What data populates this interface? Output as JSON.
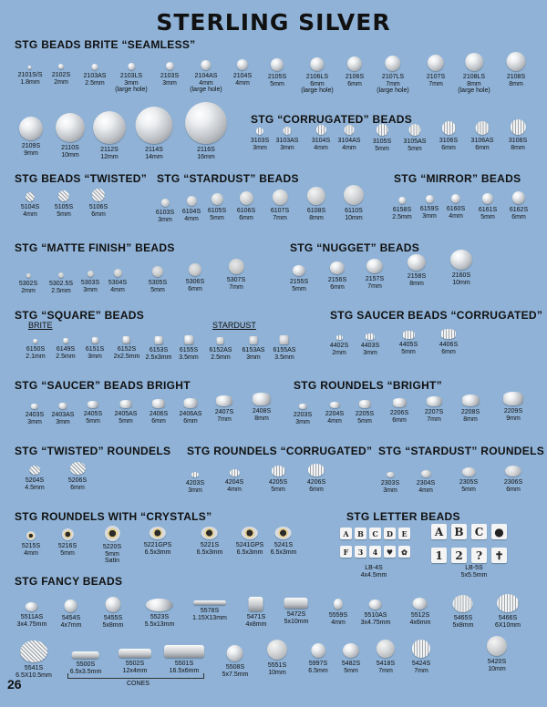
{
  "title": "STERLING SILVER",
  "page_number": "26",
  "sections": [
    {
      "id": "seamless",
      "label": "STG BEADS BRITE “SEAMLESS”"
    },
    {
      "id": "corrugated",
      "label": "STG “CORRUGATED” BEADS"
    },
    {
      "id": "twisted",
      "label": "STG BEADS “TWISTED”"
    },
    {
      "id": "stardust",
      "label": "STG “STARDUST” BEADS"
    },
    {
      "id": "mirror",
      "label": "STG “MIRROR” BEADS"
    },
    {
      "id": "matte",
      "label": "STG “MATTE FINISH” BEADS"
    },
    {
      "id": "nugget",
      "label": "STG “NUGGET” BEADS"
    },
    {
      "id": "square",
      "label": "STG “SQUARE” BEADS"
    },
    {
      "id": "saucer_corr",
      "label": "STG SAUCER BEADS “CORRUGATED”"
    },
    {
      "id": "saucer_bright",
      "label": "STG “SAUCER” BEADS BRIGHT"
    },
    {
      "id": "roundels_bright",
      "label": "STG ROUNDELS “BRIGHT”"
    },
    {
      "id": "twisted_roundels",
      "label": "STG “TWISTED” ROUNDELS"
    },
    {
      "id": "roundels_corr",
      "label": "STG ROUNDELS “CORRUGATED”"
    },
    {
      "id": "stardust_roundels",
      "label": "STG “STARDUST” ROUNDELS"
    },
    {
      "id": "crystals",
      "label": "STG ROUNDELS WITH “CRYSTALS”"
    },
    {
      "id": "letter",
      "label": "STG LETTER BEADS"
    },
    {
      "id": "fancy",
      "label": "STG FANCY BEADS"
    }
  ],
  "sublabels": {
    "brite": "BRITE",
    "stardust": "STARDUST",
    "cones": "CONES"
  },
  "items": [
    [
      "2101S/S",
      "1.8mm"
    ],
    [
      "2102S",
      "2mm"
    ],
    [
      "2103AS",
      "2.5mm"
    ],
    [
      "2103LS",
      "3mm\n(large hole)"
    ],
    [
      "2103S",
      "3mm"
    ],
    [
      "2104AS",
      "4mm\n(large hole)"
    ],
    [
      "2104S",
      "4mm"
    ],
    [
      "2105S",
      "5mm"
    ],
    [
      "2106LS",
      "6mm\n(large hole)"
    ],
    [
      "2106S",
      "6mm"
    ],
    [
      "2107LS",
      "7mm\n(large hole)"
    ],
    [
      "2107S",
      "7mm"
    ],
    [
      "2108LS",
      "8mm\n(large hole)"
    ],
    [
      "2108S",
      "8mm"
    ],
    [
      "2109S",
      "9mm"
    ],
    [
      "2110S",
      "10mm"
    ],
    [
      "2112S",
      "12mm"
    ],
    [
      "2114S",
      "14mm"
    ],
    [
      "2116S",
      "16mm"
    ],
    [
      "3103S",
      "3mm"
    ],
    [
      "3103AS",
      "3mm"
    ],
    [
      "3104S",
      "4mm"
    ],
    [
      "3104AS",
      "4mm"
    ],
    [
      "3105S",
      "5mm"
    ],
    [
      "3105AS",
      "5mm"
    ],
    [
      "3106S",
      "6mm"
    ],
    [
      "3106AS",
      "6mm"
    ],
    [
      "3108S",
      "8mm"
    ],
    [
      "5104S",
      "4mm"
    ],
    [
      "5105S",
      "5mm"
    ],
    [
      "5106S",
      "6mm"
    ],
    [
      "6103S",
      "3mm"
    ],
    [
      "6104S",
      "4mm"
    ],
    [
      "6105S",
      "5mm"
    ],
    [
      "6106S",
      "6mm"
    ],
    [
      "6107S",
      "7mm"
    ],
    [
      "6108S",
      "8mm"
    ],
    [
      "6110S",
      "10mm"
    ],
    [
      "6158S",
      "2.5mm"
    ],
    [
      "6159S",
      "3mm"
    ],
    [
      "6160S",
      "4mm"
    ],
    [
      "6161S",
      "5mm"
    ],
    [
      "6162S",
      "6mm"
    ],
    [
      "5302S",
      "2mm"
    ],
    [
      "5302.5S",
      "2.5mm"
    ],
    [
      "5303S",
      "3mm"
    ],
    [
      "5304S",
      "4mm"
    ],
    [
      "5305S",
      "5mm"
    ],
    [
      "5306S",
      "6mm"
    ],
    [
      "5307S",
      "7mm"
    ],
    [
      "2155S",
      "5mm"
    ],
    [
      "2156S",
      "6mm"
    ],
    [
      "2157S",
      "7mm"
    ],
    [
      "2158S",
      "8mm"
    ],
    [
      "2160S",
      "10mm"
    ],
    [
      "6150S",
      "2.1mm"
    ],
    [
      "6149S",
      "2.5mm"
    ],
    [
      "6151S",
      "3mm"
    ],
    [
      "6152S",
      "2x2.5mm"
    ],
    [
      "6153S",
      "2.5x3mm"
    ],
    [
      "6155S",
      "3.5mm"
    ],
    [
      "6152AS",
      "2.5mm"
    ],
    [
      "6153AS",
      "3mm"
    ],
    [
      "6155AS",
      "3.5mm"
    ],
    [
      "4402S",
      "2mm"
    ],
    [
      "4403S",
      "3mm"
    ],
    [
      "4405S",
      "5mm"
    ],
    [
      "4406S",
      "6mm"
    ],
    [
      "2403S",
      "3mm"
    ],
    [
      "2403AS",
      "3mm"
    ],
    [
      "2405S",
      "5mm"
    ],
    [
      "2405AS",
      "5mm"
    ],
    [
      "2406S",
      "6mm"
    ],
    [
      "2406AS",
      "6mm"
    ],
    [
      "2407S",
      "7mm"
    ],
    [
      "2408S",
      "8mm"
    ],
    [
      "2203S",
      "3mm"
    ],
    [
      "2204S",
      "4mm"
    ],
    [
      "2205S",
      "5mm"
    ],
    [
      "2206S",
      "6mm"
    ],
    [
      "2207S",
      "7mm"
    ],
    [
      "2208S",
      "8mm"
    ],
    [
      "2209S",
      "9mm"
    ],
    [
      "5204S",
      "4.5mm"
    ],
    [
      "5206S",
      "6mm"
    ],
    [
      "4203S",
      "3mm"
    ],
    [
      "4204S",
      "4mm"
    ],
    [
      "4205S",
      "5mm"
    ],
    [
      "4206S",
      "6mm"
    ],
    [
      "2303S",
      "3mm"
    ],
    [
      "2304S",
      "4mm"
    ],
    [
      "2305S",
      "5mm"
    ],
    [
      "2306S",
      "6mm"
    ],
    [
      "5215S",
      "4mm"
    ],
    [
      "5216S",
      "5mm"
    ],
    [
      "5220S",
      "5mm\nSatin"
    ],
    [
      "5221GPS",
      "6.5x3mm"
    ],
    [
      "5221S",
      "6.5x3mm"
    ],
    [
      "5241GPS",
      "6.5x3mm"
    ],
    [
      "5241S",
      "6.5x3mm"
    ],
    [
      "LB-4S",
      "4x4.5mm"
    ],
    [
      "LB-5S",
      "5x5.5mm"
    ],
    [
      "5511AS",
      "3x4.75mm"
    ],
    [
      "5454S",
      "4x7mm"
    ],
    [
      "5455S",
      "5x8mm"
    ],
    [
      "5523S",
      "5.5x13mm"
    ],
    [
      "5578S",
      "1.15X13mm"
    ],
    [
      "5471S",
      "4x8mm"
    ],
    [
      "5472S",
      "5x10mm"
    ],
    [
      "5559S",
      "4mm"
    ],
    [
      "5510AS",
      "3x4.75mm"
    ],
    [
      "5512S",
      "4x6mm"
    ],
    [
      "5465S",
      "5x8mm"
    ],
    [
      "5466S",
      "6X10mm"
    ],
    [
      "5541S",
      "6.5X10.5mm"
    ],
    [
      "5500S",
      "6.5x3.5mm"
    ],
    [
      "5502S",
      "12x4mm"
    ],
    [
      "5501S",
      "16.5x6mm"
    ],
    [
      "5508S",
      "5x7.5mm"
    ],
    [
      "5551S",
      "10mm"
    ],
    [
      "5997S",
      "6.5mm"
    ],
    [
      "5482S",
      "5mm"
    ],
    [
      "5418S",
      "7mm"
    ],
    [
      "5424S",
      "7mm"
    ],
    [
      "5420S",
      "10mm"
    ]
  ],
  "letters": [
    "A",
    "B",
    "C",
    "D",
    "E",
    "F",
    "3",
    "4",
    "♥",
    "✿",
    "A",
    "B",
    "C",
    "●",
    "1",
    "2",
    "?",
    "✝"
  ]
}
